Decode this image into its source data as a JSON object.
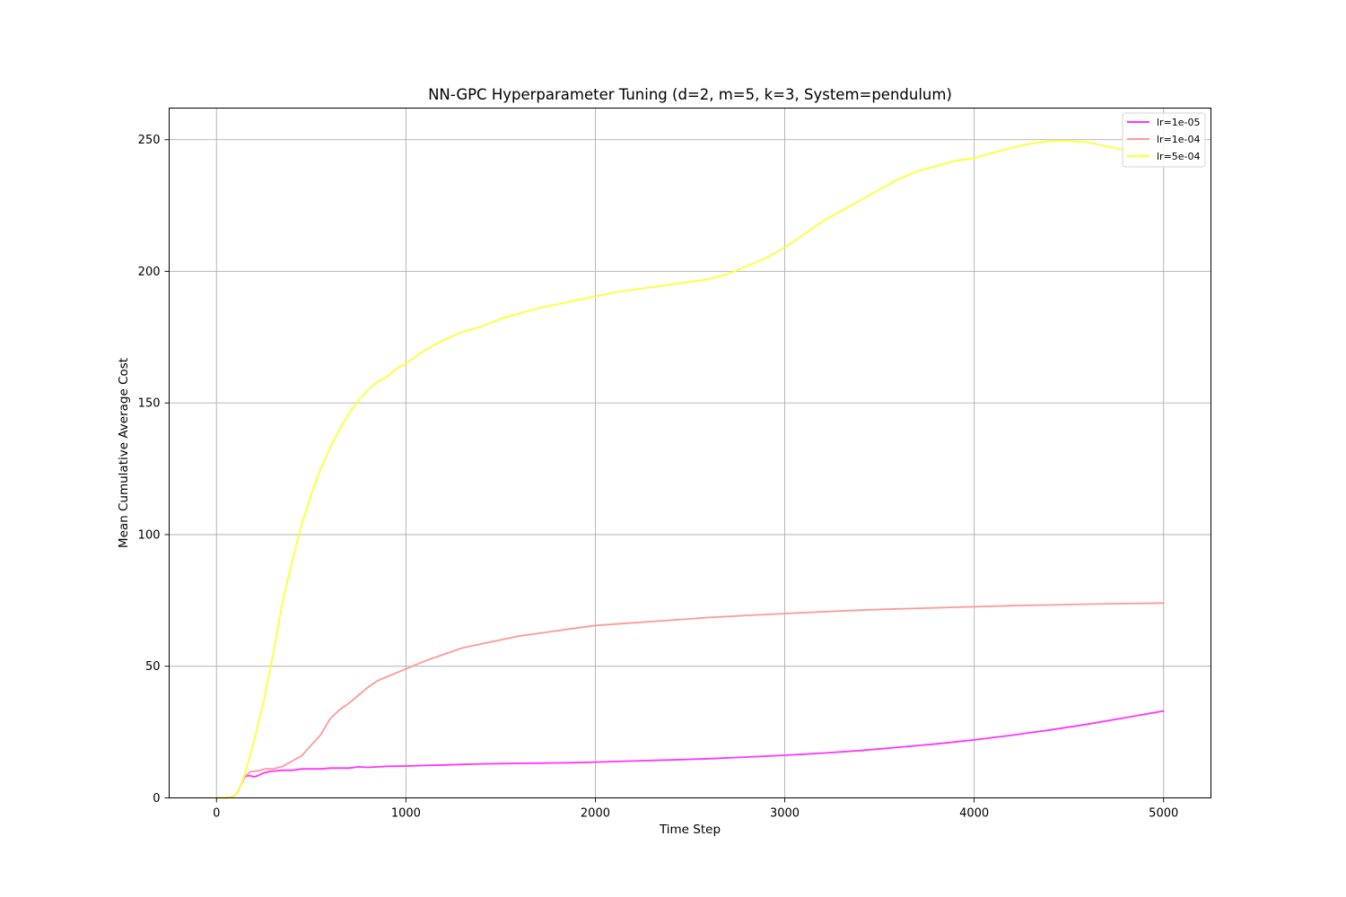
{
  "chart_data": {
    "type": "line",
    "title": "NN-GPC Hyperparameter Tuning (d=2, m=5, k=3, System=pendulum)",
    "xlabel": "Time Step",
    "ylabel": "Mean Cumulative Average Cost",
    "xlim": [
      -250,
      5250
    ],
    "ylim": [
      0,
      262
    ],
    "xticks": [
      0,
      1000,
      2000,
      3000,
      4000,
      5000
    ],
    "yticks": [
      0,
      50,
      100,
      150,
      200,
      250
    ],
    "grid": true,
    "legend_position": "top-right",
    "series": [
      {
        "name": "lr=1e-05",
        "color": "#ff33ff",
        "x": [
          0,
          50,
          90,
          110,
          130,
          150,
          170,
          200,
          220,
          250,
          280,
          300,
          350,
          400,
          450,
          500,
          550,
          600,
          700,
          750,
          800,
          850,
          900,
          1000,
          1100,
          1200,
          1300,
          1400,
          1500,
          1600,
          1700,
          1800,
          1900,
          2000,
          2200,
          2400,
          2600,
          2800,
          3000,
          3200,
          3400,
          3600,
          3800,
          4000,
          4200,
          4400,
          4600,
          4800,
          5000
        ],
        "y": [
          0,
          0,
          0.5,
          2,
          5,
          8,
          8.5,
          8,
          8.5,
          9.5,
          10,
          10.2,
          10.5,
          10.5,
          11,
          11,
          11,
          11.3,
          11.3,
          11.8,
          11.6,
          11.8,
          12,
          12.1,
          12.3,
          12.5,
          12.7,
          12.9,
          13,
          13.1,
          13.2,
          13.3,
          13.4,
          13.6,
          14,
          14.4,
          14.9,
          15.5,
          16.2,
          17,
          18,
          19.2,
          20.5,
          22,
          23.8,
          25.8,
          28,
          30.5,
          33
        ]
      },
      {
        "name": "lr=1e-04",
        "color": "#ff9999",
        "x": [
          0,
          50,
          90,
          110,
          130,
          150,
          180,
          200,
          230,
          260,
          300,
          350,
          400,
          450,
          500,
          550,
          600,
          650,
          700,
          750,
          800,
          850,
          900,
          950,
          1000,
          1100,
          1200,
          1300,
          1400,
          1500,
          1600,
          1700,
          1800,
          1900,
          2000,
          2200,
          2400,
          2600,
          2800,
          3000,
          3200,
          3400,
          3600,
          3800,
          4000,
          4200,
          4400,
          4600,
          4800,
          5000
        ],
        "y": [
          0,
          0,
          0.5,
          2,
          5,
          8,
          10,
          10,
          10.5,
          11,
          11,
          12,
          14,
          16,
          20,
          24,
          30,
          33.5,
          36,
          39,
          42,
          44.5,
          46,
          47.5,
          49,
          52,
          54.5,
          57,
          58.5,
          60,
          61.5,
          62.5,
          63.5,
          64.5,
          65.5,
          66.5,
          67.5,
          68.5,
          69.3,
          70,
          70.7,
          71.3,
          71.8,
          72.2,
          72.6,
          73,
          73.3,
          73.6,
          73.8,
          74
        ]
      },
      {
        "name": "lr=5e-04",
        "color": "#ffff33",
        "x": [
          0,
          50,
          90,
          110,
          130,
          150,
          200,
          250,
          300,
          350,
          400,
          450,
          500,
          550,
          600,
          650,
          700,
          750,
          800,
          850,
          900,
          950,
          1000,
          1100,
          1200,
          1300,
          1400,
          1500,
          1600,
          1700,
          1800,
          1900,
          2000,
          2100,
          2200,
          2300,
          2400,
          2500,
          2600,
          2700,
          2800,
          2900,
          3000,
          3100,
          3200,
          3300,
          3400,
          3500,
          3600,
          3700,
          3800,
          3900,
          4000,
          4100,
          4200,
          4300,
          4400,
          4500,
          4600,
          4700,
          4800,
          4900,
          5000
        ],
        "y": [
          0,
          0,
          0.5,
          2,
          5,
          9,
          22,
          37,
          55,
          75,
          90,
          104,
          115,
          125,
          133,
          140,
          146,
          151,
          155,
          158,
          160,
          163,
          165,
          170,
          174,
          177,
          179,
          182,
          184,
          186,
          187.5,
          189,
          190.5,
          192,
          193,
          194,
          195,
          196,
          197,
          199,
          202,
          205,
          209,
          214,
          219,
          223,
          227,
          231,
          235,
          238,
          240,
          242,
          243,
          245,
          247,
          248.5,
          249.5,
          249.5,
          249,
          247.5,
          246,
          244,
          242
        ]
      }
    ]
  }
}
